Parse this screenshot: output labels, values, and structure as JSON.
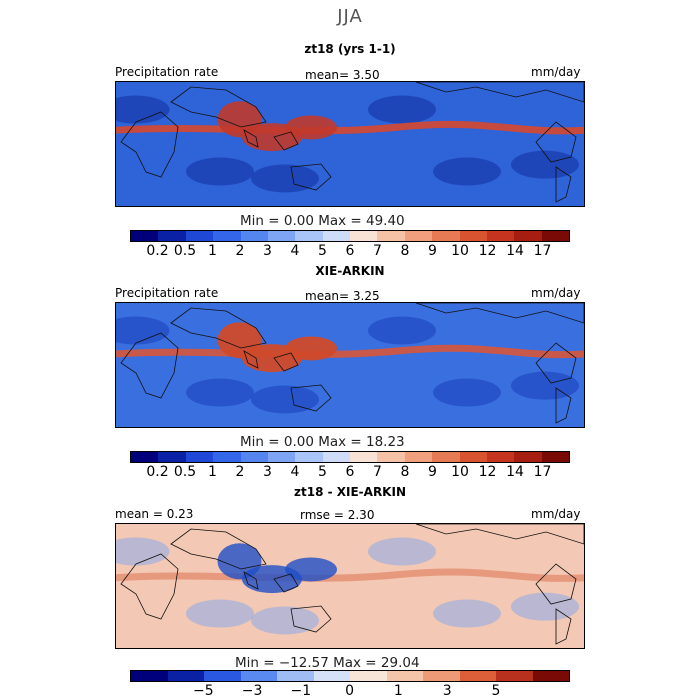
{
  "season": "JJA",
  "panels": [
    {
      "title": "zt18 (yrs 1-1)",
      "left_label": "Precipitation rate",
      "center_label": "mean=   3.50",
      "right_label": "mm/day",
      "minmax": "Min =    0.00 Max =  49.40",
      "palette": "precip",
      "tick_labels": [
        "0.2",
        "0.5",
        "1",
        "2",
        "3",
        "4",
        "5",
        "6",
        "7",
        "8",
        "9",
        "10",
        "12",
        "14",
        "17"
      ],
      "fields": {
        "background": "#2f63d8",
        "itcz": {
          "color": "#d8472e",
          "lat": 10,
          "strength": 0.9
        },
        "monsoon": {
          "color": "#c0392b",
          "strength": 0.9
        },
        "subtropics": {
          "color": "#1a3fb0",
          "strength": 0.8
        }
      }
    },
    {
      "title": "XIE-ARKIN",
      "left_label": "Precipitation rate",
      "center_label": "mean=   3.25",
      "right_label": "mm/day",
      "minmax": "Min =    0.00 Max =  18.23",
      "palette": "precip",
      "tick_labels": [
        "0.2",
        "0.5",
        "1",
        "2",
        "3",
        "4",
        "5",
        "6",
        "7",
        "8",
        "9",
        "10",
        "12",
        "14",
        "17"
      ],
      "fields": {
        "background": "#3a6fe0",
        "itcz": {
          "color": "#e0552f",
          "lat": 8,
          "strength": 0.85
        },
        "monsoon": {
          "color": "#d04a2a",
          "strength": 0.95
        },
        "subtropics": {
          "color": "#2049c0",
          "strength": 0.7
        }
      }
    },
    {
      "title": "zt18 - XIE-ARKIN",
      "left_label": "mean =    0.23",
      "center_label": "rmse =    2.30",
      "right_label": "mm/day",
      "minmax": "Min = −12.57 Max =  29.04",
      "palette": "diff",
      "tick_labels": [
        "−5",
        "−3",
        "−1",
        "0",
        "1",
        "3",
        "5"
      ],
      "fields": {
        "background": "#f3c8b4",
        "itcz": {
          "color": "#e07a5a",
          "lat": 6,
          "strength": 0.6
        },
        "monsoon": {
          "color": "#1f4fc8",
          "strength": 0.8
        },
        "subtropics": {
          "color": "#7fa6ee",
          "strength": 0.5
        }
      }
    }
  ],
  "colors": {
    "precip": [
      "#00007a",
      "#0a21a6",
      "#1f48d6",
      "#3366e8",
      "#5585ef",
      "#7ea5f4",
      "#a9c4f7",
      "#cfdcf7",
      "#f7e2d5",
      "#f6c2a6",
      "#f0a07c",
      "#e67a55",
      "#d8532f",
      "#c5341e",
      "#a61d12",
      "#7a0a05"
    ],
    "diff": [
      "#00007a",
      "#0a21a6",
      "#2a58e0",
      "#5a8aef",
      "#9fbcf5",
      "#d5e1f7",
      "#f7e5d8",
      "#f5c5aa",
      "#ee9a76",
      "#dc5f3a",
      "#b8311e",
      "#7a0a05"
    ]
  },
  "chart_data": [
    {
      "type": "heatmap",
      "title": "zt18 (yrs 1-1)",
      "subtitle": "JJA",
      "ylabel": "",
      "xlabel": "",
      "variable": "Precipitation rate",
      "units": "mm/day",
      "mean": 3.5,
      "min": 0.0,
      "max": 49.4,
      "colorbar_levels": [
        0.2,
        0.5,
        1,
        2,
        3,
        4,
        5,
        6,
        7,
        8,
        9,
        10,
        12,
        14,
        17
      ]
    },
    {
      "type": "heatmap",
      "title": "XIE-ARKIN",
      "variable": "Precipitation rate",
      "units": "mm/day",
      "mean": 3.25,
      "min": 0.0,
      "max": 18.23,
      "colorbar_levels": [
        0.2,
        0.5,
        1,
        2,
        3,
        4,
        5,
        6,
        7,
        8,
        9,
        10,
        12,
        14,
        17
      ]
    },
    {
      "type": "heatmap",
      "title": "zt18 - XIE-ARKIN",
      "units": "mm/day",
      "mean": 0.23,
      "rmse": 2.3,
      "min": -12.57,
      "max": 29.04,
      "colorbar_levels": [
        -5,
        -3,
        -1,
        0,
        1,
        3,
        5
      ]
    }
  ]
}
